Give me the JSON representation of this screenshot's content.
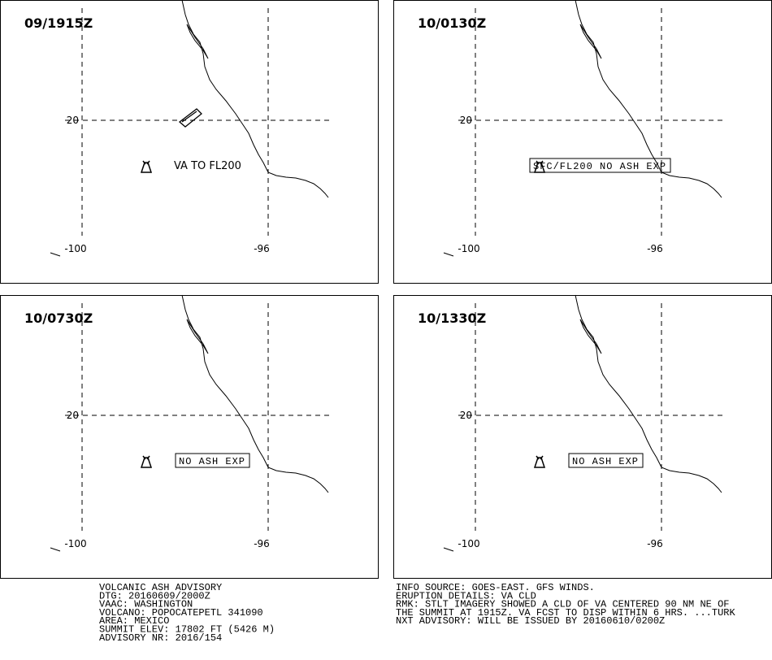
{
  "panels": [
    {
      "time": "09/1915Z",
      "annotation": "VA TO FL200"
    },
    {
      "time": "10/0130Z",
      "annotation": "SFC/FL200 NO ASH EXP"
    },
    {
      "time": "10/0730Z",
      "annotation": "NO ASH EXP"
    },
    {
      "time": "10/1330Z",
      "annotation": "NO ASH EXP"
    }
  ],
  "grid": {
    "lat": "20",
    "lons": [
      "-100",
      "-96"
    ]
  },
  "footer": {
    "left": [
      "VOLCANIC ASH ADVISORY",
      "DTG: 20160609/2000Z",
      "VAAC: WASHINGTON",
      "VOLCANO: POPOCATEPETL 341090",
      "AREA: MEXICO",
      "SUMMIT ELEV: 17802 FT (5426 M)",
      "ADVISORY NR: 2016/154"
    ],
    "right": [
      "INFO SOURCE: GOES-EAST. GFS WINDS.",
      "ERUPTION DETAILS: VA CLD",
      "RMK: STLT IMAGERY SHOWED A CLD OF VA CENTERED 90 NM NE OF",
      "THE SUMMIT AT 1915Z. VA FCST TO DISP WITHIN 6 HRS. ...TURK",
      "NXT ADVISORY: WILL BE ISSUED BY 20160610/0200Z"
    ]
  }
}
